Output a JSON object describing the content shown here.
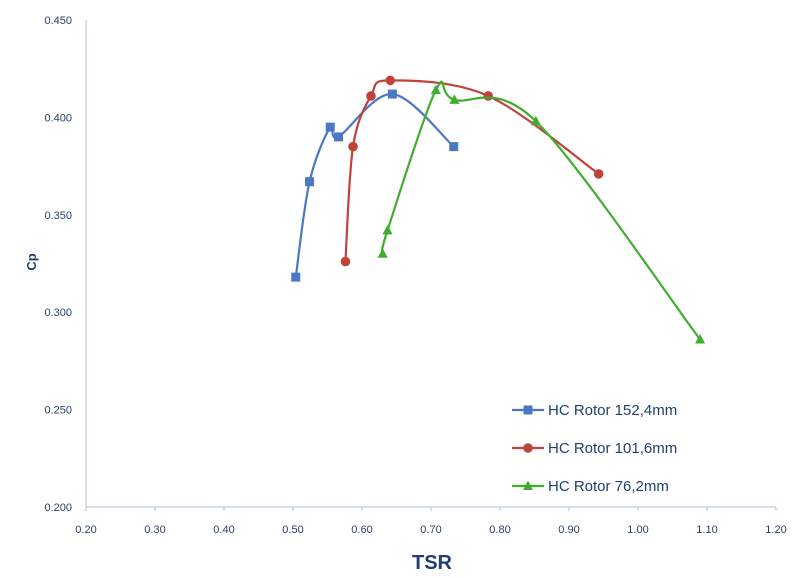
{
  "chart_data": {
    "type": "line",
    "title": "",
    "xlabel": "TSR",
    "ylabel": "Cp",
    "xlim": [
      0.2,
      1.2
    ],
    "ylim": [
      0.2,
      0.45
    ],
    "x_ticks": [
      "0.20",
      "0.30",
      "0.40",
      "0.50",
      "0.60",
      "0.70",
      "0.80",
      "0.90",
      "1.00",
      "1.10",
      "1.20"
    ],
    "y_ticks": [
      "0.200",
      "0.250",
      "0.300",
      "0.350",
      "0.400",
      "0.450"
    ],
    "grid": false,
    "legend_position": "bottom-right",
    "series": [
      {
        "name": "HC Rotor 152,4mm",
        "color": "#4a78c2",
        "marker": "square",
        "x": [
          0.504,
          0.524,
          0.554,
          0.566,
          0.644,
          0.733
        ],
        "y": [
          0.318,
          0.367,
          0.395,
          0.39,
          0.412,
          0.385
        ]
      },
      {
        "name": "HC Rotor 101,6mm",
        "color": "#c0423b",
        "marker": "circle",
        "x": [
          0.576,
          0.587,
          0.613,
          0.641,
          0.783,
          0.943
        ],
        "y": [
          0.326,
          0.385,
          0.411,
          0.419,
          0.411,
          0.371
        ]
      },
      {
        "name": "HC Rotor 76,2mm",
        "color": "#3fae2e",
        "marker": "triangle",
        "x": [
          0.63,
          0.637,
          0.707,
          0.734,
          0.852,
          1.09
        ],
        "y": [
          0.33,
          0.342,
          0.414,
          0.409,
          0.398,
          0.286
        ]
      }
    ]
  }
}
